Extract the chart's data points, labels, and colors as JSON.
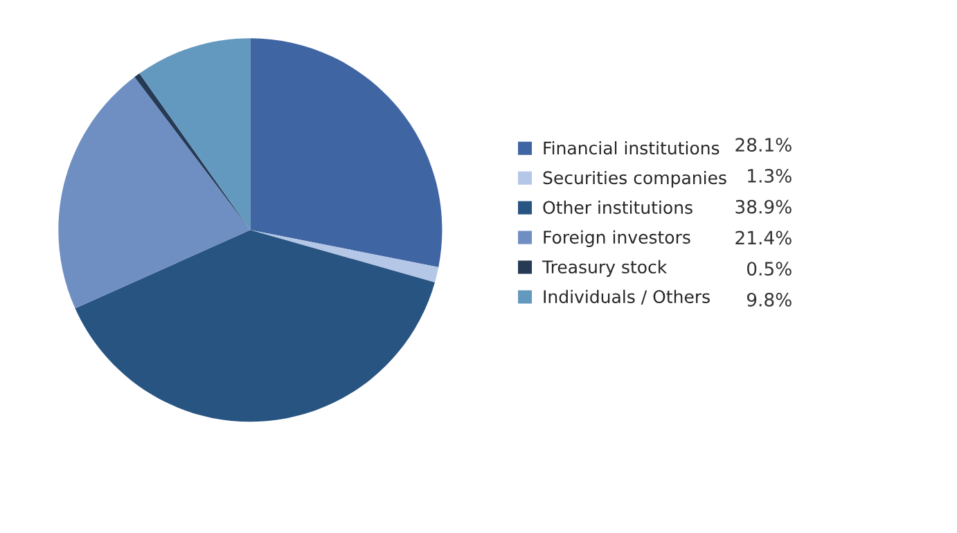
{
  "chart_data": {
    "type": "pie",
    "categories": [
      "Financial institutions",
      "Securities companies",
      "Other institutions",
      "Foreign investors",
      "Treasury stock",
      "Individuals / Others"
    ],
    "values": [
      28.1,
      1.3,
      38.9,
      21.4,
      0.5,
      9.8
    ],
    "colors": [
      "#4065a3",
      "#b4c7e7",
      "#285482",
      "#6f8fc3",
      "#243a55",
      "#6499bf"
    ],
    "value_labels": [
      "28.1%",
      "1.3%",
      "38.9%",
      "21.4%",
      "0.5%",
      "9.8%"
    ],
    "legend": "right"
  }
}
